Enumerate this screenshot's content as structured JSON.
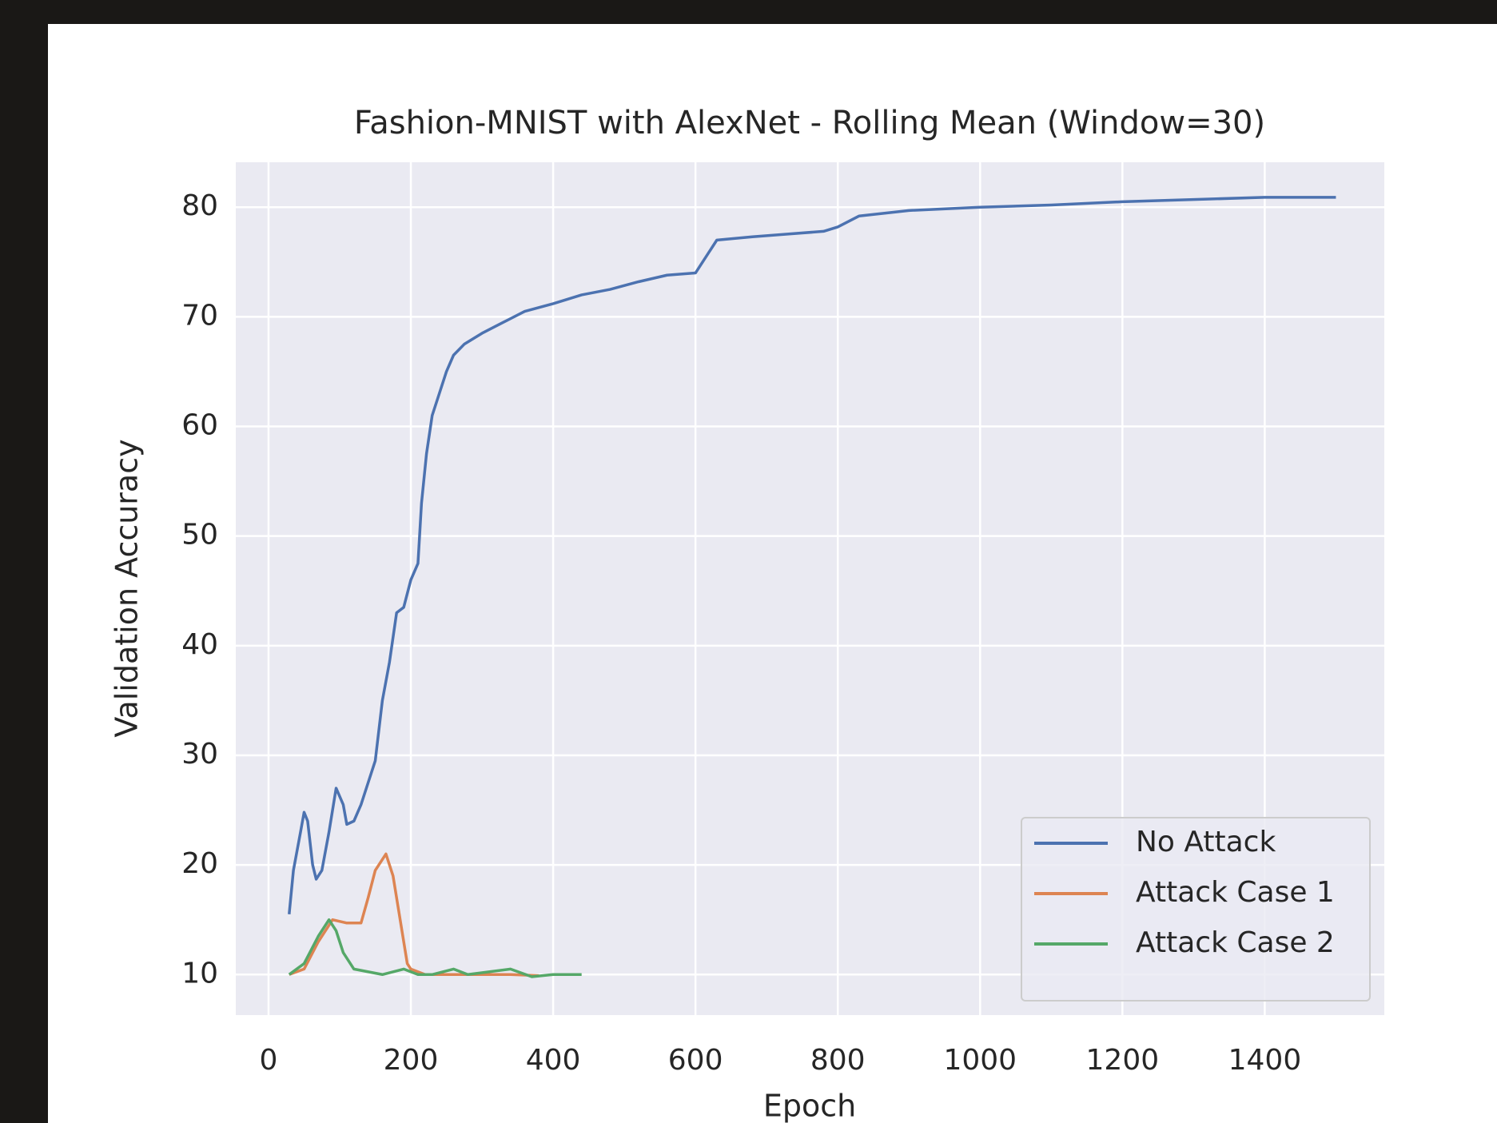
{
  "chart_data": {
    "type": "line",
    "title": "Fashion-MNIST with AlexNet - Rolling Mean (Window=30)",
    "x_label": "Epoch",
    "y_label": "Validation Accuracy",
    "xlim": [
      -46,
      1568
    ],
    "ylim": [
      6.3,
      84.1
    ],
    "xticks": [
      0,
      200,
      400,
      600,
      800,
      1000,
      1200,
      1400
    ],
    "yticks": [
      10,
      20,
      30,
      40,
      50,
      60,
      70,
      80
    ],
    "grid": true,
    "legend": "lower right",
    "series": [
      {
        "name": "No Attack",
        "color": "#4c72b0",
        "x": [
          29,
          35,
          45,
          50,
          55,
          62,
          67,
          75,
          85,
          95,
          105,
          110,
          120,
          130,
          140,
          150,
          160,
          170,
          180,
          190,
          200,
          210,
          215,
          222,
          230,
          240,
          250,
          260,
          275,
          300,
          330,
          360,
          400,
          440,
          480,
          520,
          560,
          600,
          630,
          680,
          720,
          780,
          800,
          830,
          900,
          1000,
          1100,
          1200,
          1300,
          1400,
          1500
        ],
        "values": [
          15.5,
          19.5,
          23,
          24.8,
          24,
          20,
          18.7,
          19.5,
          23,
          27,
          25.5,
          23.7,
          24,
          25.5,
          27.5,
          29.5,
          35,
          38.5,
          43,
          43.5,
          46,
          47.5,
          53,
          57.5,
          61,
          63,
          65,
          66.5,
          67.5,
          68.5,
          69.5,
          70.5,
          71.2,
          72,
          72.5,
          73.2,
          73.8,
          74,
          77,
          77.3,
          77.5,
          77.8,
          78.2,
          79.2,
          79.7,
          80,
          80.2,
          80.5,
          80.7,
          80.9,
          80.9
        ]
      },
      {
        "name": "Attack Case 1",
        "color": "#dd8452",
        "x": [
          29,
          50,
          70,
          90,
          110,
          130,
          140,
          150,
          165,
          175,
          185,
          195,
          200,
          220,
          260,
          300,
          340,
          380
        ],
        "values": [
          10,
          10.5,
          13,
          15,
          14.7,
          14.7,
          17,
          19.5,
          21,
          19,
          15,
          11,
          10.5,
          10,
          10,
          10,
          10,
          9.9
        ]
      },
      {
        "name": "Attack Case 2",
        "color": "#55a868",
        "x": [
          29,
          50,
          70,
          85,
          95,
          105,
          120,
          160,
          190,
          210,
          230,
          260,
          280,
          340,
          370,
          400,
          440
        ],
        "values": [
          10,
          11,
          13.5,
          15,
          14,
          12,
          10.5,
          10,
          10.5,
          10,
          10,
          10.5,
          10,
          10.5,
          9.8,
          10,
          10
        ]
      }
    ]
  }
}
